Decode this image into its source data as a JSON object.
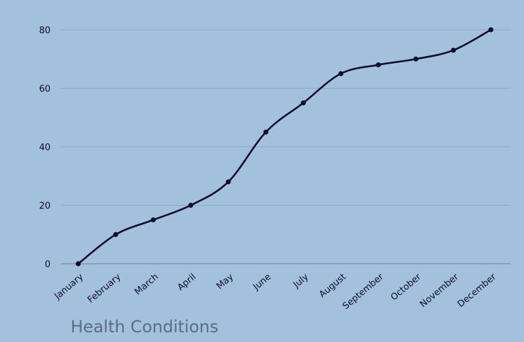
{
  "chart_data": {
    "type": "line",
    "title": "Health Conditions",
    "categories": [
      "January",
      "February",
      "March",
      "April",
      "May",
      "June",
      "July",
      "August",
      "September",
      "October",
      "November",
      "December"
    ],
    "series": [
      {
        "values": [
          0,
          10,
          15,
          20,
          28,
          45,
          55,
          65,
          68,
          70,
          73,
          80
        ]
      }
    ],
    "ylim": [
      0,
      80
    ],
    "yticks": [
      0,
      20,
      40,
      60,
      80
    ],
    "grid": true,
    "smooth": true,
    "colors": {
      "background": "#a3c0dc",
      "line": "#0d0d2b",
      "grid": "#8aa8c6",
      "title": "#5a6d86"
    }
  }
}
